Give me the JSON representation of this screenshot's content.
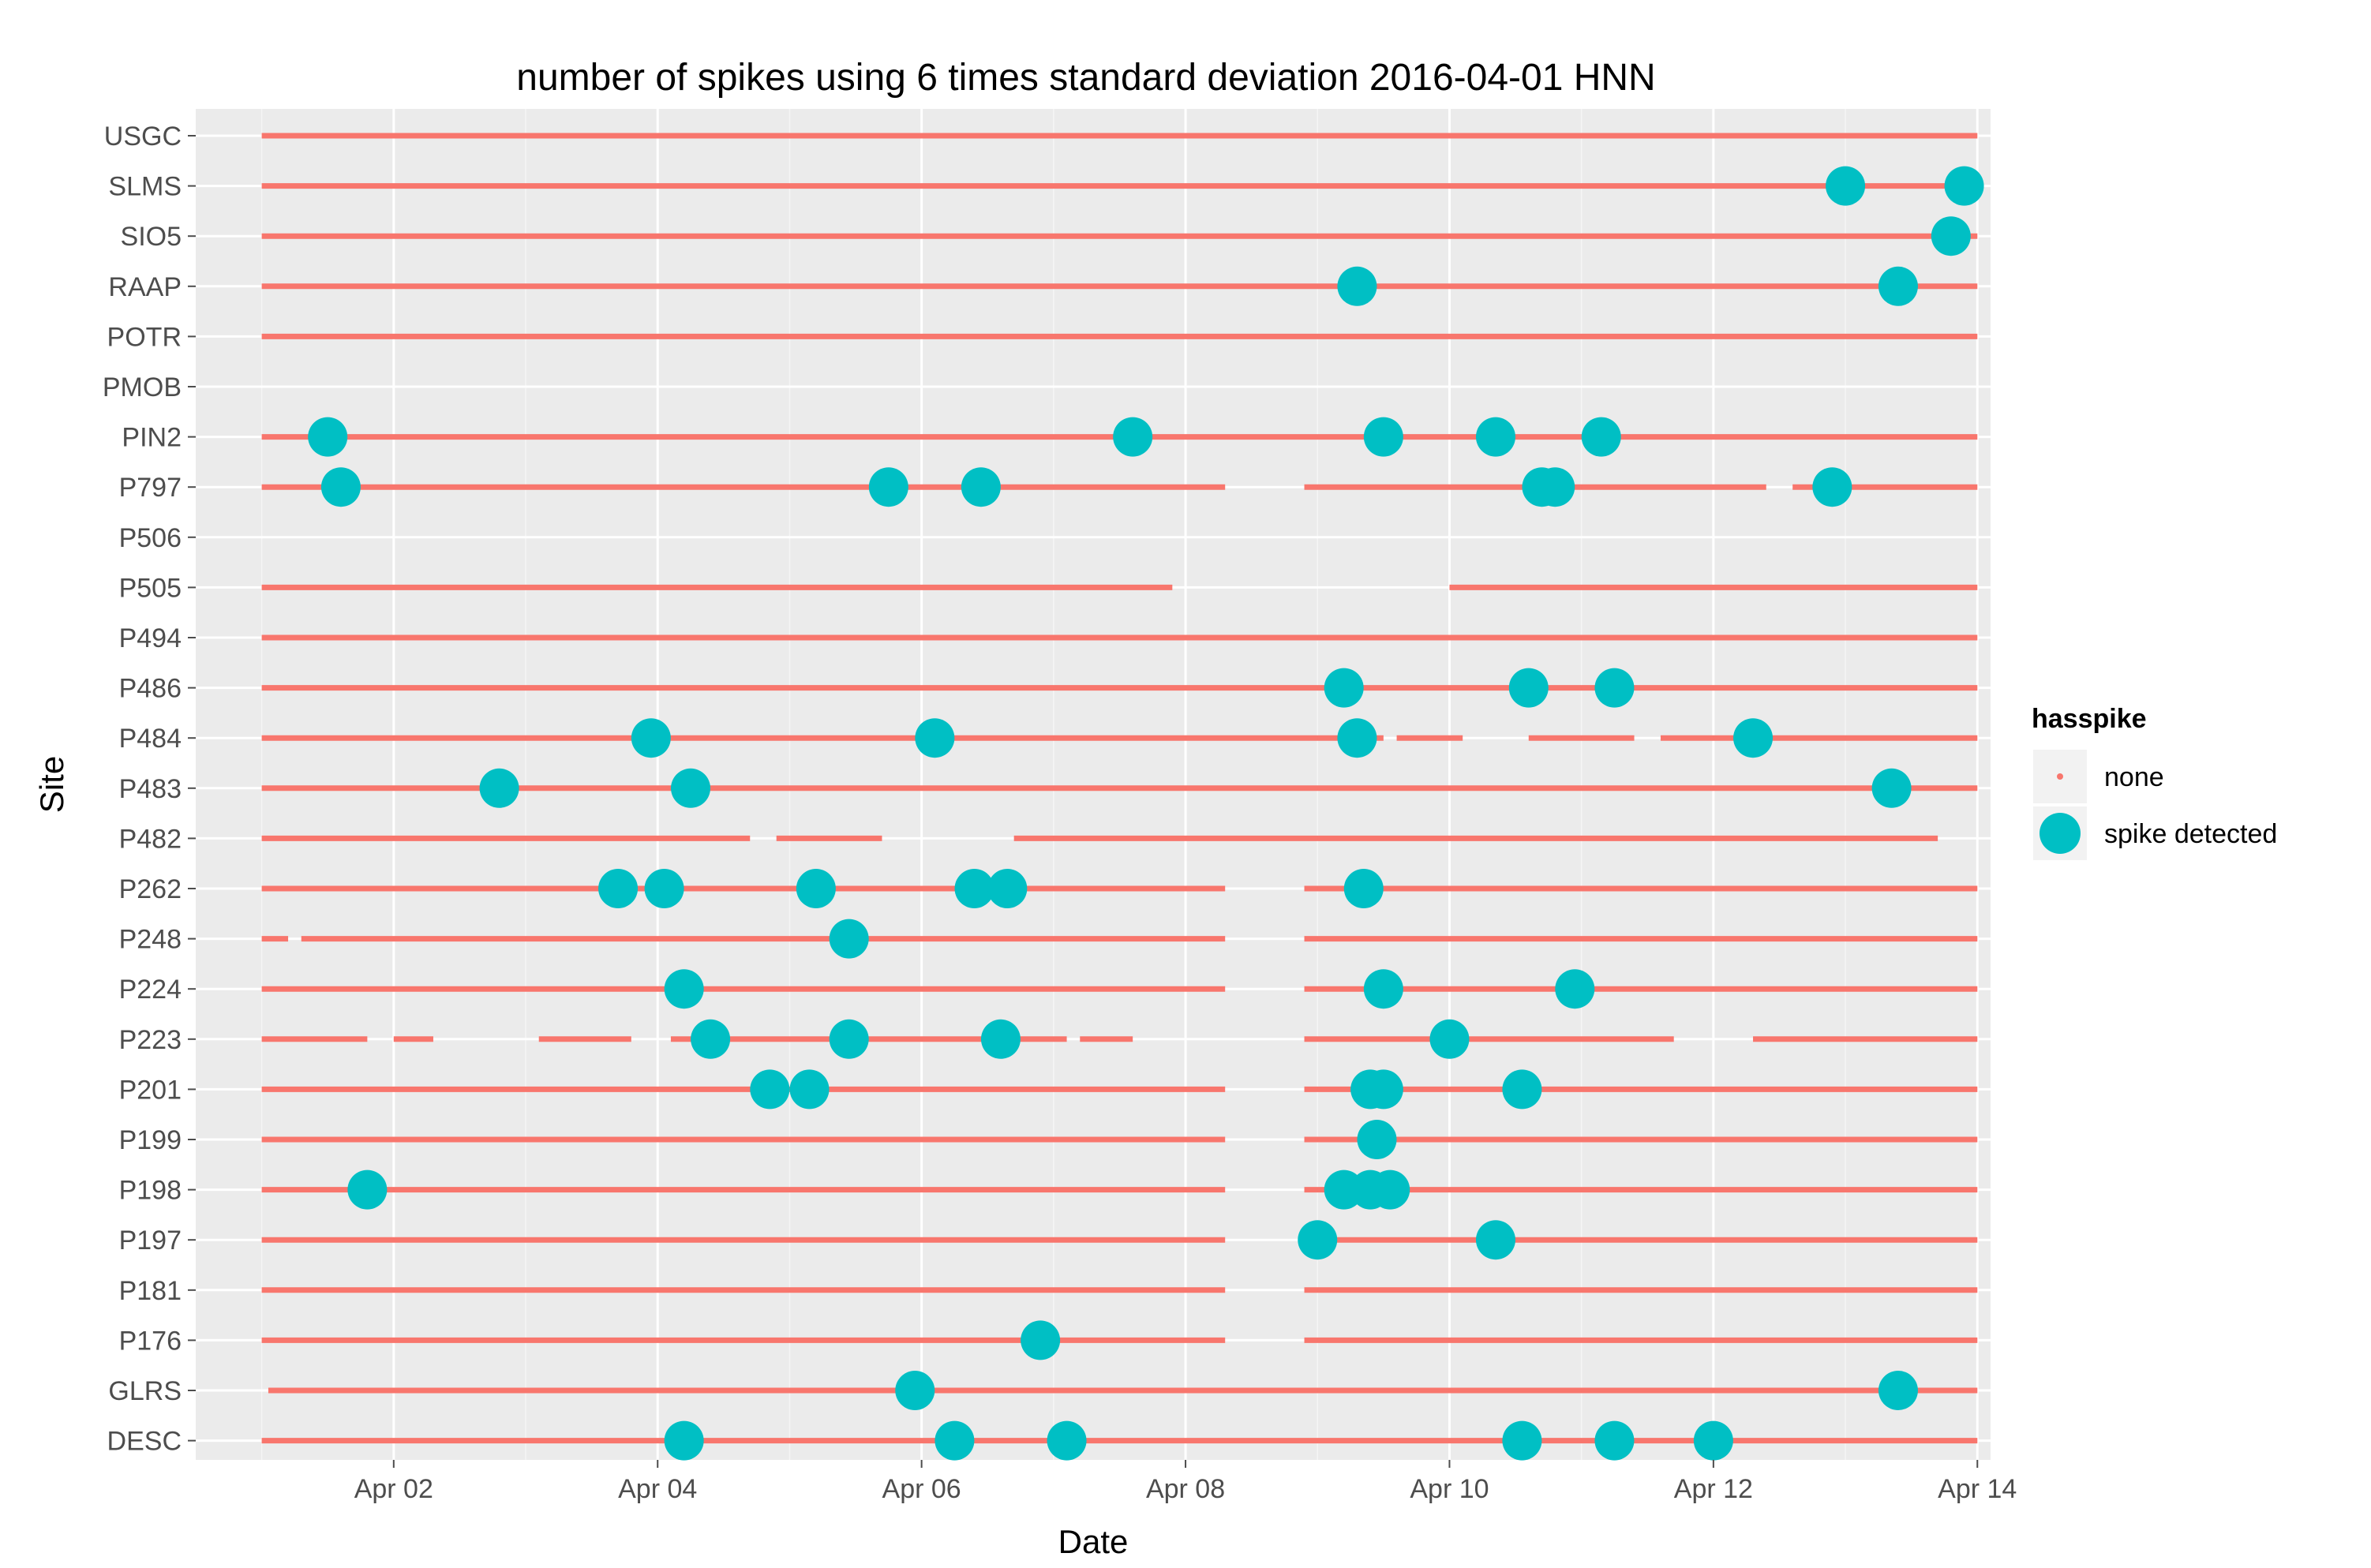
{
  "chart_data": {
    "type": "scatter",
    "title": "number of spikes using  6 times standard deviation 2016-04-01 HNN",
    "xlabel": "Date",
    "ylabel": "Site",
    "x_range_days": [
      0.5,
      14.1
    ],
    "x_ticks": [
      {
        "day": 2,
        "label": "Apr 02"
      },
      {
        "day": 4,
        "label": "Apr 04"
      },
      {
        "day": 6,
        "label": "Apr 06"
      },
      {
        "day": 8,
        "label": "Apr 08"
      },
      {
        "day": 10,
        "label": "Apr 10"
      },
      {
        "day": 12,
        "label": "Apr 12"
      },
      {
        "day": 14,
        "label": "Apr 14"
      }
    ],
    "sites": [
      "USGC",
      "SLMS",
      "SIO5",
      "RAAP",
      "POTR",
      "PMOB",
      "PIN2",
      "P797",
      "P506",
      "P505",
      "P494",
      "P486",
      "P484",
      "P483",
      "P482",
      "P262",
      "P248",
      "P224",
      "P223",
      "P201",
      "P199",
      "P198",
      "P197",
      "P181",
      "P176",
      "GLRS",
      "DESC"
    ],
    "legend": {
      "title": "hasspike",
      "items": [
        {
          "key": "none",
          "label": "none",
          "color": "#F8766D"
        },
        {
          "key": "spike",
          "label": "spike detected",
          "color": "#00BFC4"
        }
      ]
    },
    "coverage": {
      "USGC": [
        [
          1.0,
          14.0
        ]
      ],
      "SLMS": [
        [
          1.0,
          14.0
        ]
      ],
      "SIO5": [
        [
          1.0,
          14.0
        ]
      ],
      "RAAP": [
        [
          1.0,
          14.0
        ]
      ],
      "POTR": [
        [
          1.0,
          14.0
        ]
      ],
      "PMOB": [],
      "PIN2": [
        [
          1.0,
          14.0
        ]
      ],
      "P797": [
        [
          1.0,
          8.3
        ],
        [
          8.9,
          12.4
        ],
        [
          12.6,
          14.0
        ]
      ],
      "P506": [],
      "P505": [
        [
          1.0,
          7.9
        ],
        [
          10.0,
          14.0
        ]
      ],
      "P494": [
        [
          1.0,
          14.0
        ]
      ],
      "P486": [
        [
          1.0,
          14.0
        ]
      ],
      "P484": [
        [
          1.0,
          9.5
        ],
        [
          9.6,
          10.1
        ],
        [
          10.6,
          11.4
        ],
        [
          11.6,
          14.0
        ]
      ],
      "P483": [
        [
          1.0,
          14.0
        ]
      ],
      "P482": [
        [
          1.0,
          4.7
        ],
        [
          4.9,
          5.7
        ],
        [
          6.7,
          13.7
        ]
      ],
      "P262": [
        [
          1.0,
          8.3
        ],
        [
          8.9,
          14.0
        ]
      ],
      "P248": [
        [
          1.0,
          1.2
        ],
        [
          1.3,
          8.3
        ],
        [
          8.9,
          14.0
        ]
      ],
      "P224": [
        [
          1.0,
          8.3
        ],
        [
          8.9,
          14.0
        ]
      ],
      "P223": [
        [
          1.0,
          1.8
        ],
        [
          2.0,
          2.3
        ],
        [
          3.1,
          3.8
        ],
        [
          4.1,
          7.1
        ],
        [
          7.2,
          7.6
        ],
        [
          8.9,
          11.7
        ],
        [
          12.3,
          14.0
        ]
      ],
      "P201": [
        [
          1.0,
          8.3
        ],
        [
          8.9,
          14.0
        ]
      ],
      "P199": [
        [
          1.0,
          8.3
        ],
        [
          8.9,
          14.0
        ]
      ],
      "P198": [
        [
          1.0,
          8.3
        ],
        [
          8.9,
          14.0
        ]
      ],
      "P197": [
        [
          1.0,
          8.3
        ],
        [
          8.9,
          14.0
        ]
      ],
      "P181": [
        [
          1.0,
          8.3
        ],
        [
          8.9,
          14.0
        ]
      ],
      "P176": [
        [
          1.0,
          8.3
        ],
        [
          8.9,
          14.0
        ]
      ],
      "GLRS": [
        [
          1.05,
          14.0
        ]
      ],
      "DESC": [
        [
          1.0,
          14.0
        ]
      ]
    },
    "spikes": {
      "USGC": [],
      "SLMS": [
        13.0,
        13.9
      ],
      "SIO5": [
        13.8
      ],
      "RAAP": [
        9.3,
        13.4
      ],
      "POTR": [],
      "PMOB": [],
      "PIN2": [
        1.5,
        7.6,
        9.5,
        10.35,
        11.15
      ],
      "P797": [
        1.6,
        5.75,
        6.45,
        10.7,
        10.8,
        12.9
      ],
      "P506": [],
      "P505": [],
      "P494": [],
      "P486": [
        9.2,
        10.6,
        11.25
      ],
      "P484": [
        3.95,
        6.1,
        9.3,
        12.3
      ],
      "P483": [
        2.8,
        4.25,
        13.35
      ],
      "P482": [],
      "P262": [
        3.7,
        4.05,
        5.2,
        6.4,
        6.65,
        9.35
      ],
      "P248": [
        5.45
      ],
      "P224": [
        4.2,
        9.5,
        10.95
      ],
      "P223": [
        4.4,
        5.45,
        6.6,
        10.0
      ],
      "P201": [
        4.85,
        5.15,
        9.4,
        9.5,
        10.55
      ],
      "P199": [
        9.45
      ],
      "P198": [
        1.8,
        9.2,
        9.4,
        9.55
      ],
      "P197": [
        9.0,
        10.35
      ],
      "P181": [],
      "P176": [
        6.9
      ],
      "GLRS": [
        5.95,
        13.4
      ],
      "DESC": [
        4.2,
        6.25,
        7.1,
        10.55,
        11.25,
        12.0
      ]
    }
  }
}
